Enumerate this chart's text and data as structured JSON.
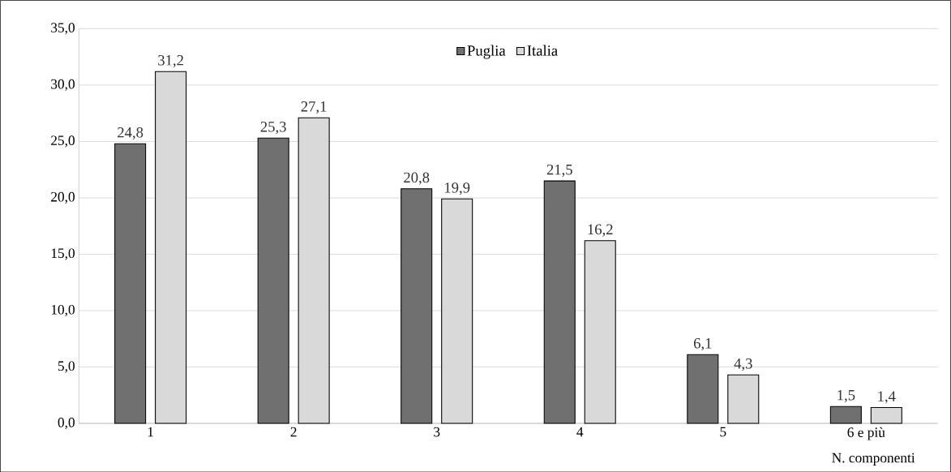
{
  "chart_data": {
    "type": "bar",
    "xlabel": "N. componenti",
    "categories": [
      "1",
      "2",
      "3",
      "4",
      "5",
      "6 e più"
    ],
    "series": [
      {
        "name": "Puglia",
        "color": "#707070",
        "values": [
          24.8,
          25.3,
          20.8,
          21.5,
          6.1,
          1.5
        ],
        "value_labels": [
          "24,8",
          "25,3",
          "20,8",
          "21,5",
          "6,1",
          "1,5"
        ]
      },
      {
        "name": "Italia",
        "color": "#d9d9d9",
        "values": [
          31.2,
          27.1,
          19.9,
          16.2,
          4.3,
          1.4
        ],
        "value_labels": [
          "31,2",
          "27,1",
          "19,9",
          "16,2",
          "4,3",
          "1,4"
        ]
      }
    ],
    "ylim": [
      0,
      35
    ],
    "yticks": [
      {
        "value": 0,
        "label": "0,0"
      },
      {
        "value": 5,
        "label": "5,0"
      },
      {
        "value": 10,
        "label": "10,0"
      },
      {
        "value": 15,
        "label": "15,0"
      },
      {
        "value": 20,
        "label": "20,0"
      },
      {
        "value": 25,
        "label": "25,0"
      },
      {
        "value": 30,
        "label": "30,0"
      },
      {
        "value": 35,
        "label": "35,0"
      }
    ],
    "grid": "y",
    "legend": "top"
  }
}
